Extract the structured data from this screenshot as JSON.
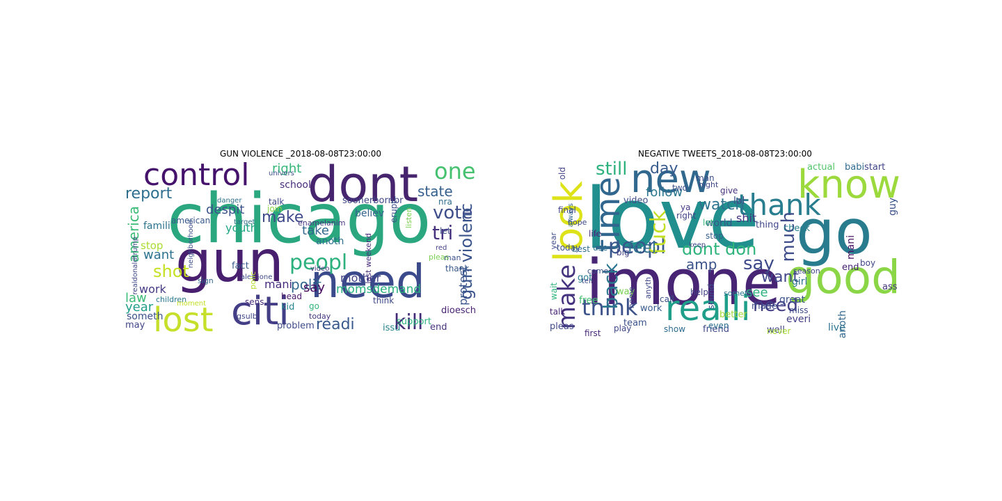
{
  "figure": {
    "left_title": "GUN VIOLENCE _2018-08-08T23:00:00",
    "right_title": "NEGATIVE TWEETS_2018-08-08T23:00:00"
  },
  "clouds": {
    "left": [
      {
        "text": "chicago",
        "color": "#2aa77f"
      },
      {
        "text": "dont",
        "color": "#46246e"
      },
      {
        "text": "need",
        "color": "#3b4a8b"
      },
      {
        "text": "control",
        "color": "#45136b"
      },
      {
        "text": "gun",
        "color": "#471f6e"
      },
      {
        "text": "citi",
        "color": "#433e85"
      },
      {
        "text": "lost",
        "color": "#c6df2a"
      },
      {
        "text": "peopl",
        "color": "#2cb17e"
      },
      {
        "text": "one",
        "color": "#45c16f"
      },
      {
        "text": "kill",
        "color": "#432a77"
      },
      {
        "text": "readi",
        "color": "#38598c"
      },
      {
        "text": "report",
        "color": "#2e6e8e"
      },
      {
        "text": "shot",
        "color": "#c5e021"
      },
      {
        "text": "vote",
        "color": "#3d4d8a"
      },
      {
        "text": "make",
        "color": "#3f4a8a"
      },
      {
        "text": "momsdemand",
        "color": "#2ab07f"
      },
      {
        "text": "tri",
        "color": "#46327e"
      },
      {
        "text": "gun violenc",
        "color": "#3a548c"
      },
      {
        "text": "america",
        "color": "#3bbb75"
      },
      {
        "text": "right",
        "color": "#34b679"
      },
      {
        "text": "state",
        "color": "#355f8d"
      },
      {
        "text": "take",
        "color": "#31688e"
      },
      {
        "text": "despit",
        "color": "#3a538b"
      },
      {
        "text": "polit",
        "color": "#31688e"
      },
      {
        "text": "want",
        "color": "#2c728e"
      },
      {
        "text": "law",
        "color": "#3bbb75"
      },
      {
        "text": "year",
        "color": "#1f9e89"
      },
      {
        "text": "work",
        "color": "#443983"
      },
      {
        "text": "mani",
        "color": "#472d7b"
      },
      {
        "text": "youth",
        "color": "#22a884"
      },
      {
        "text": "protest",
        "color": "#39558c"
      },
      {
        "text": "mother",
        "color": "#414287"
      },
      {
        "text": "anoth",
        "color": "#2d708e"
      },
      {
        "text": "believ",
        "color": "#33638d"
      },
      {
        "text": "say",
        "color": "#46085c"
      },
      {
        "text": "school",
        "color": "#472d7b"
      },
      {
        "text": "someth",
        "color": "#3b518b"
      },
      {
        "text": "soonerbornbr",
        "color": "#3f4788"
      },
      {
        "text": "problem",
        "color": "#3e4c8a"
      },
      {
        "text": "support",
        "color": "#2db27d"
      },
      {
        "text": "may",
        "color": "#404588"
      },
      {
        "text": "fact",
        "color": "#38598c"
      },
      {
        "text": "head",
        "color": "#481769"
      },
      {
        "text": "kid",
        "color": "#25848e"
      },
      {
        "text": "go",
        "color": "#31b57b"
      },
      {
        "text": "sens",
        "color": "#472c7a"
      },
      {
        "text": "today",
        "color": "#453781"
      },
      {
        "text": "think",
        "color": "#3e4a89"
      },
      {
        "text": "end",
        "color": "#46337f"
      },
      {
        "text": "issu",
        "color": "#26828e"
      },
      {
        "text": "stop",
        "color": "#aadc32"
      },
      {
        "text": "talk",
        "color": "#3f4788"
      },
      {
        "text": "famili",
        "color": "#2c728e"
      },
      {
        "text": "join",
        "color": "#8bd646"
      },
      {
        "text": "american",
        "color": "#38598c"
      },
      {
        "text": "children",
        "color": "#2a788e"
      },
      {
        "text": "alex jone",
        "color": "#3e4989"
      },
      {
        "text": "enamelanim",
        "color": "#453882"
      },
      {
        "text": "last weekend",
        "color": "#472e7c"
      },
      {
        "text": "nra",
        "color": "#2f6c8e"
      },
      {
        "text": "red",
        "color": "#423f85"
      },
      {
        "text": "man",
        "color": "#3b528b"
      },
      {
        "text": "thank",
        "color": "#38588c"
      },
      {
        "text": "let",
        "color": "#3e4c8a"
      },
      {
        "text": "pleas",
        "color": "#7ad151"
      },
      {
        "text": "univers",
        "color": "#3b528b"
      },
      {
        "text": "danger",
        "color": "#2c728e"
      },
      {
        "text": "target",
        "color": "#2d708e"
      },
      {
        "text": "sign",
        "color": "#31678e"
      },
      {
        "text": "polic",
        "color": "#b5de2b"
      },
      {
        "text": "video",
        "color": "#46327e"
      },
      {
        "text": "neighborhood",
        "color": "#3c508b"
      },
      {
        "text": "realdonaldtrump",
        "color": "#3f4788"
      },
      {
        "text": "listen",
        "color": "#7ad151"
      },
      {
        "text": "erupt",
        "color": "#3b518b"
      },
      {
        "text": "gsulb",
        "color": "#404688"
      },
      {
        "text": "moment",
        "color": "#c2df23"
      },
      {
        "text": "dioesch",
        "color": "#482173"
      },
      {
        "text": "im",
        "color": "#b8de29"
      }
    ],
    "right": [
      {
        "text": "love",
        "color": "#218f8d"
      },
      {
        "text": "go",
        "color": "#287c8e"
      },
      {
        "text": "imone",
        "color": "#482475"
      },
      {
        "text": "know",
        "color": "#9bd93c"
      },
      {
        "text": "good",
        "color": "#8bd646"
      },
      {
        "text": "new",
        "color": "#31688e"
      },
      {
        "text": "realli",
        "color": "#1f9e89"
      },
      {
        "text": "look",
        "color": "#dde318"
      },
      {
        "text": "thank",
        "color": "#287d8e"
      },
      {
        "text": "time",
        "color": "#31678e"
      },
      {
        "text": "peopl",
        "color": "#39568c"
      },
      {
        "text": "think",
        "color": "#3b528b"
      },
      {
        "text": "make",
        "color": "#45337f"
      },
      {
        "text": "say",
        "color": "#3e4a89"
      },
      {
        "text": "dont don",
        "color": "#2fb47c"
      },
      {
        "text": "need",
        "color": "#433e85"
      },
      {
        "text": "fuck",
        "color": "#c2df23"
      },
      {
        "text": "back",
        "color": "#2a768e"
      },
      {
        "text": "feel",
        "color": "#2d718e"
      },
      {
        "text": "still",
        "color": "#2db27d"
      },
      {
        "text": "day",
        "color": "#375b8d"
      },
      {
        "text": "watch",
        "color": "#2c728e"
      },
      {
        "text": "much",
        "color": "#3e4c8a"
      },
      {
        "text": "want",
        "color": "#404688"
      },
      {
        "text": "follow",
        "color": "#2a778e"
      },
      {
        "text": "shit",
        "color": "#463480"
      },
      {
        "text": "amp",
        "color": "#3a538b"
      },
      {
        "text": "see",
        "color": "#2db27d"
      },
      {
        "text": "lol",
        "color": "#3f4889"
      },
      {
        "text": "guy",
        "color": "#3b528b"
      },
      {
        "text": "actual",
        "color": "#52c569"
      },
      {
        "text": "babi",
        "color": "#2f6b8e"
      },
      {
        "text": "start",
        "color": "#404588"
      },
      {
        "text": "mani",
        "color": "#471164"
      },
      {
        "text": "end",
        "color": "#482173"
      },
      {
        "text": "ass",
        "color": "#453882"
      },
      {
        "text": "great",
        "color": "#3b528b"
      },
      {
        "text": "girl",
        "color": "#2c728e"
      },
      {
        "text": "everi",
        "color": "#423f85"
      },
      {
        "text": "anoth",
        "color": "#31678e"
      },
      {
        "text": "live",
        "color": "#2c728e"
      },
      {
        "text": "check",
        "color": "#277f8e"
      },
      {
        "text": "thing",
        "color": "#3f4889"
      },
      {
        "text": "well",
        "color": "#404588"
      },
      {
        "text": "made",
        "color": "#3d4d8a"
      },
      {
        "text": "better",
        "color": "#a2da37"
      },
      {
        "text": "friend",
        "color": "#3e4a89"
      },
      {
        "text": "show",
        "color": "#2e6d8e"
      },
      {
        "text": "stop",
        "color": "#355e8d"
      },
      {
        "text": "world",
        "color": "#39568c"
      },
      {
        "text": "let",
        "color": "#35b779"
      },
      {
        "text": "right",
        "color": "#414487"
      },
      {
        "text": "work",
        "color": "#375a8c"
      },
      {
        "text": "team",
        "color": "#3b528b"
      },
      {
        "text": "video",
        "color": "#3c4f8a"
      },
      {
        "text": "give",
        "color": "#46327e"
      },
      {
        "text": "way",
        "color": "#7ad151"
      },
      {
        "text": "call",
        "color": "#3b528b"
      },
      {
        "text": "big",
        "color": "#414287"
      },
      {
        "text": "use",
        "color": "#2d708e"
      },
      {
        "text": "best",
        "color": "#2e6e8e"
      },
      {
        "text": "today",
        "color": "#3d4e8a"
      },
      {
        "text": "talk",
        "color": "#482374"
      },
      {
        "text": "got",
        "color": "#277e8e"
      },
      {
        "text": "free",
        "color": "#44bf70"
      },
      {
        "text": "pleas",
        "color": "#3f4889"
      },
      {
        "text": "play",
        "color": "#3f4788"
      },
      {
        "text": "first",
        "color": "#482878"
      },
      {
        "text": "wait",
        "color": "#2fb47c"
      },
      {
        "text": "year",
        "color": "#3e4c8a"
      },
      {
        "text": "hope",
        "color": "#3e4989"
      },
      {
        "text": "final",
        "color": "#414487"
      },
      {
        "text": "old",
        "color": "#404588"
      },
      {
        "text": "man",
        "color": "#3d4e8a"
      },
      {
        "text": "two",
        "color": "#3b528b"
      },
      {
        "text": "ya",
        "color": "#453781"
      },
      {
        "text": "life",
        "color": "#472c7a"
      },
      {
        "text": "come",
        "color": "#3b528b"
      },
      {
        "text": "even",
        "color": "#2d708e"
      },
      {
        "text": "miss",
        "color": "#3e4c8a"
      },
      {
        "text": "help",
        "color": "#414287"
      },
      {
        "text": "night",
        "color": "#3f4788"
      },
      {
        "text": "keep",
        "color": "#404588"
      },
      {
        "text": "tell",
        "color": "#3e4a89"
      },
      {
        "text": "sound",
        "color": "#3c508b"
      },
      {
        "text": "someth",
        "color": "#2c728e"
      },
      {
        "text": "boy",
        "color": "#404688"
      },
      {
        "text": "never",
        "color": "#a8db34"
      },
      {
        "text": "home",
        "color": "#3f4889"
      },
      {
        "text": "season",
        "color": "#404588"
      },
      {
        "text": "anyth",
        "color": "#3e4989"
      },
      {
        "text": "always",
        "color": "#31678e"
      }
    ]
  }
}
